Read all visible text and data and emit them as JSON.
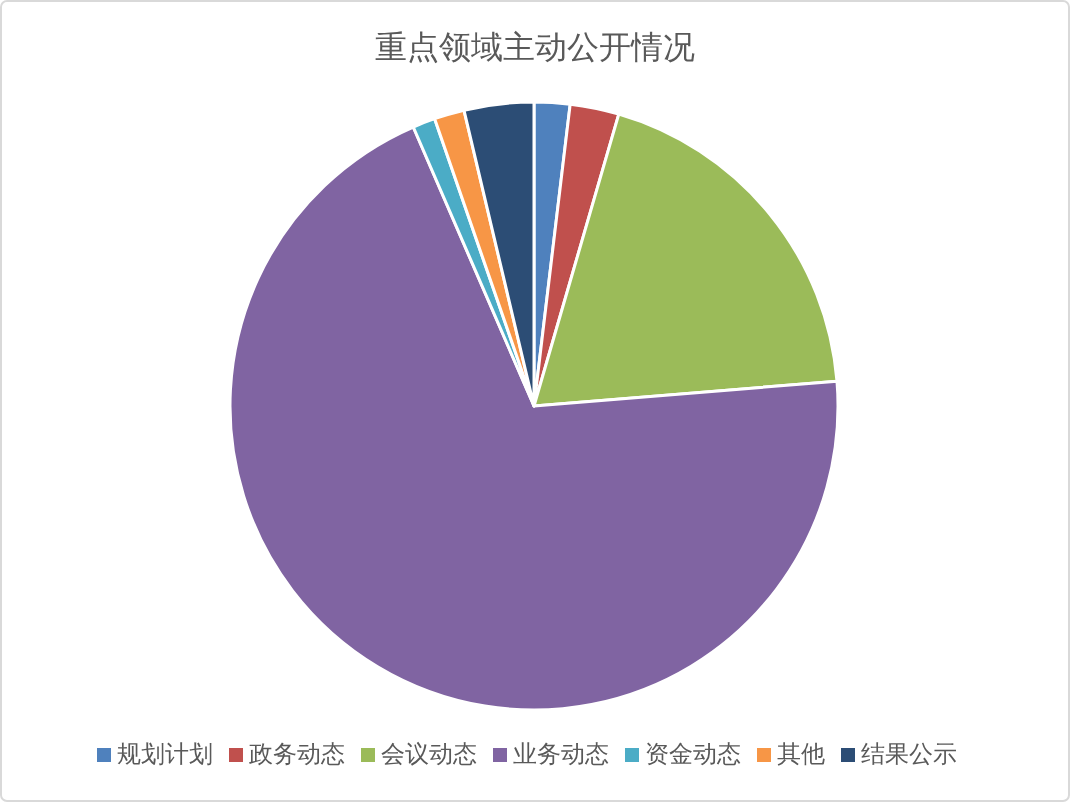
{
  "chart_data": {
    "type": "pie",
    "title": "重点领域主动公开情况",
    "categories": [
      "规划计划",
      "政务动态",
      "会议动态",
      "业务动态",
      "资金动态",
      "其他",
      "结果公示"
    ],
    "values": [
      1.9,
      2.6,
      19.2,
      69.8,
      1.2,
      1.6,
      3.7
    ],
    "colors": [
      "#4f81bd",
      "#c0504d",
      "#9bbb59",
      "#8064a2",
      "#4bacc6",
      "#f79646",
      "#2c4d75"
    ],
    "legend": "bottom"
  }
}
